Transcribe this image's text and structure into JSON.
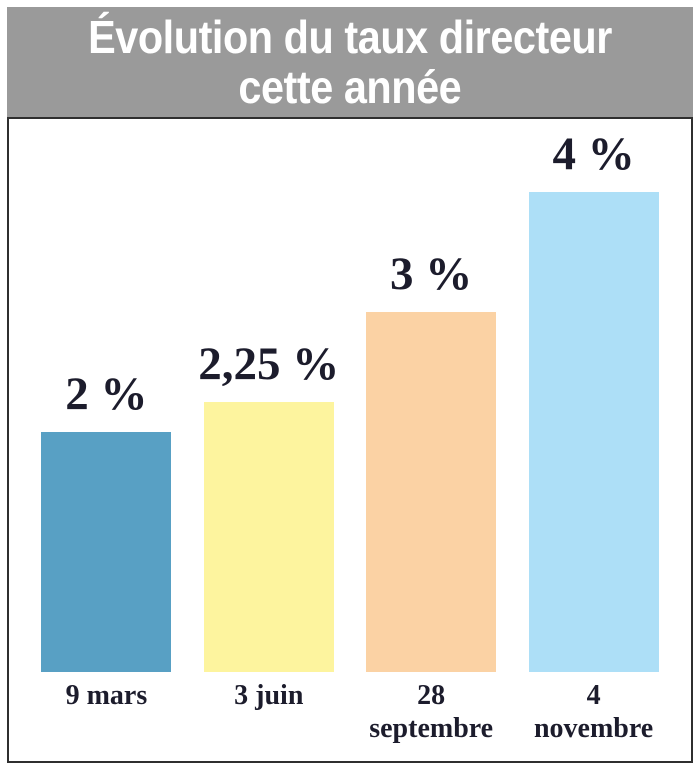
{
  "header": {
    "title_line1": "Évolution du taux directeur",
    "title_line2": "cette année",
    "bg_color": "#9a9a9a",
    "text_color": "#ffffff"
  },
  "chart_data": {
    "type": "bar",
    "title": "Évolution du taux directeur cette année",
    "categories": [
      "9 mars",
      "3 juin",
      "28 septembre",
      "4 novembre"
    ],
    "values": [
      2,
      2.25,
      3,
      4
    ],
    "value_labels": [
      "2 %",
      "2,25 %",
      "3 %",
      "4 %"
    ],
    "bar_colors": [
      "#58a0c4",
      "#fdf49e",
      "#fbd2a4",
      "#addff7"
    ],
    "xlabel": "",
    "ylabel": "",
    "ylim": [
      0,
      4.6
    ],
    "grid": false,
    "legend": false,
    "label_color": "#1c1c2c",
    "border_color": "#2f2f2f"
  }
}
